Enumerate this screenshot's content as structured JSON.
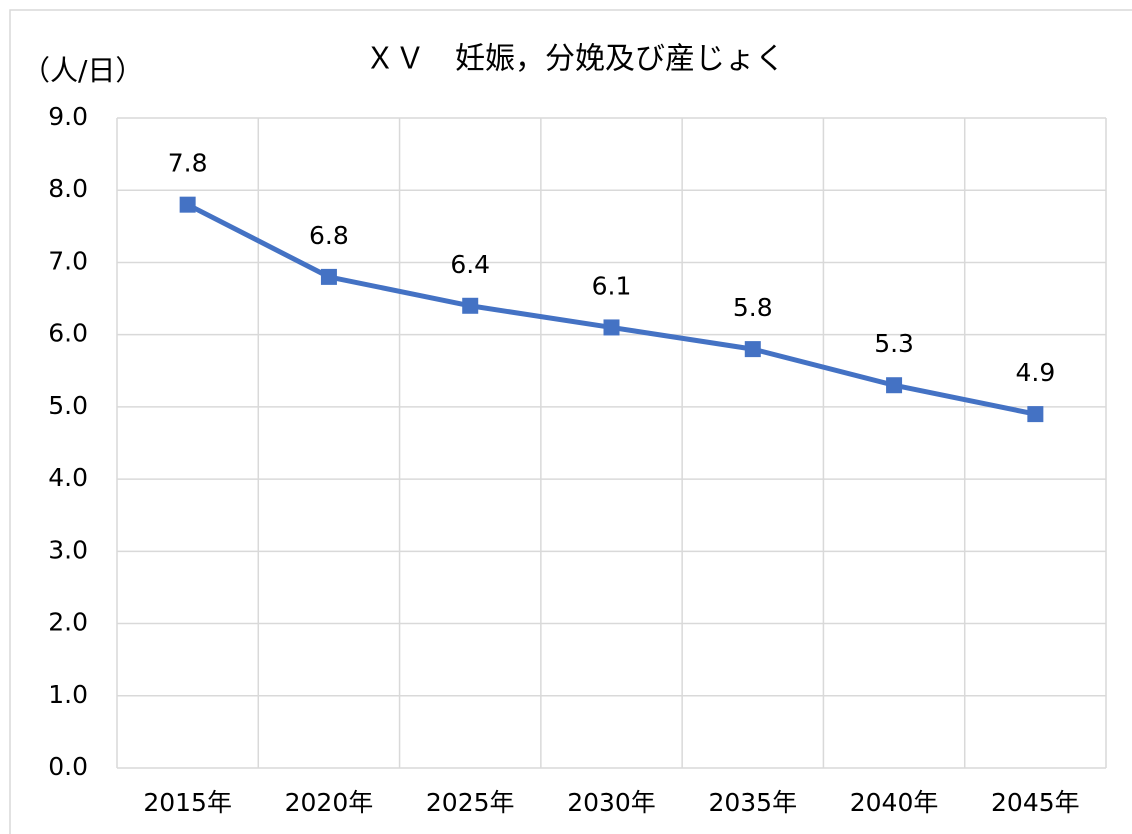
{
  "chart_data": {
    "type": "line",
    "title": "ＸＶ　妊娠，分娩及び産じょく",
    "y_label": "（人/日）",
    "categories": [
      "2015年",
      "2020年",
      "2025年",
      "2030年",
      "2035年",
      "2040年",
      "2045年"
    ],
    "series": [
      {
        "name": "妊娠，分娩及び産じょく",
        "color": "#4472c4",
        "values": [
          7.8,
          6.8,
          6.4,
          6.1,
          5.8,
          5.3,
          4.9
        ]
      }
    ],
    "ylim": [
      0,
      9
    ],
    "yticks": [
      {
        "value": 0,
        "label": "0.0"
      },
      {
        "value": 1,
        "label": "1.0"
      },
      {
        "value": 2,
        "label": "2.0"
      },
      {
        "value": 3,
        "label": "3.0"
      },
      {
        "value": 4,
        "label": "4.0"
      },
      {
        "value": 5,
        "label": "5.0"
      },
      {
        "value": 6,
        "label": "6.0"
      },
      {
        "value": 7,
        "label": "7.0"
      },
      {
        "value": 8,
        "label": "8.0"
      },
      {
        "value": 9,
        "label": "9.0"
      }
    ],
    "grid": true
  }
}
